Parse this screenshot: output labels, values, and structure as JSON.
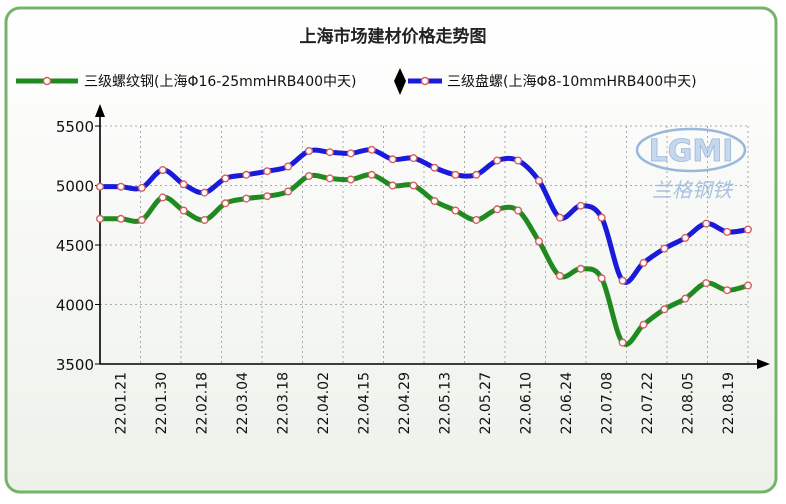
{
  "chart_data": {
    "type": "line",
    "title": "上海市场建材价格走势图",
    "xlabel": "",
    "ylabel": "",
    "ylim": [
      3500,
      5500
    ],
    "yticks": [
      3500,
      4000,
      4500,
      5000,
      5500
    ],
    "grid": true,
    "legend_position": "top",
    "x_tick_labels": [
      "22.01.21",
      "22.01.30",
      "22.02.18",
      "22.03.04",
      "22.03.18",
      "22.04.02",
      "22.04.15",
      "22.04.29",
      "22.05.13",
      "22.05.27",
      "22.06.10",
      "22.06.24",
      "22.07.08",
      "22.07.22",
      "22.08.05",
      "22.08.19"
    ],
    "series": [
      {
        "name": "三级螺纹钢(上海Φ16-25mmHRB400中天)",
        "color": "#1f8a1f",
        "values": [
          4720,
          4720,
          4710,
          4900,
          4790,
          4710,
          4850,
          4890,
          4910,
          4950,
          5080,
          5060,
          5050,
          5090,
          5000,
          5000,
          4870,
          4790,
          4710,
          4800,
          4790,
          4530,
          4240,
          4300,
          4220,
          3680,
          3830,
          3960,
          4050,
          4180,
          4120,
          4160
        ]
      },
      {
        "name": "三级盘螺(上海Φ8-10mmHRB400中天)",
        "color": "#1a1adb",
        "values": [
          4990,
          4990,
          4980,
          5130,
          5010,
          4940,
          5060,
          5090,
          5120,
          5160,
          5290,
          5280,
          5270,
          5300,
          5220,
          5230,
          5150,
          5090,
          5090,
          5210,
          5210,
          5040,
          4730,
          4830,
          4730,
          4200,
          4350,
          4470,
          4560,
          4680,
          4610,
          4630
        ]
      }
    ]
  },
  "watermark": {
    "logo_text": "LGMI",
    "cn_text": "兰格钢铁"
  }
}
